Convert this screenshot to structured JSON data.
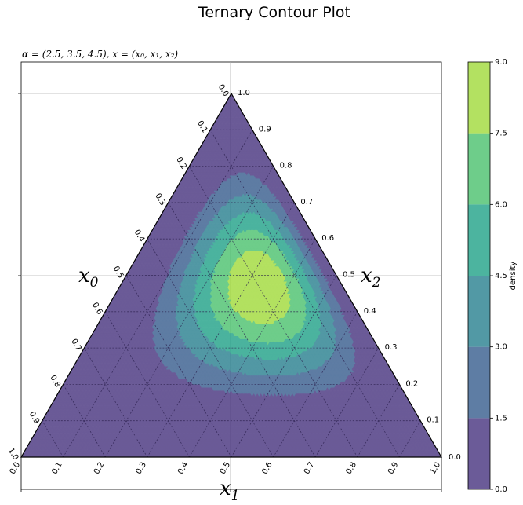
{
  "chart_data": {
    "type": "heatmap",
    "plot_kind": "ternary-contour",
    "title": "Ternary Contour Plot",
    "subtitle": "α = (2.5, 3.5, 4.5), x = (x₀, x₁, x₂)",
    "axis_labels": {
      "a": "x",
      "a_sub": "0",
      "b": "x",
      "b_sub": "1",
      "c": "x",
      "c_sub": "2"
    },
    "alpha": [
      2.5,
      3.5,
      4.5
    ],
    "ternary_ticks": [
      "0.0",
      "0.1",
      "0.2",
      "0.3",
      "0.4",
      "0.5",
      "0.6",
      "0.7",
      "0.8",
      "0.9",
      "1.0"
    ],
    "colorbar": {
      "label": "density",
      "ticks": [
        "0.0",
        "1.5",
        "3.0",
        "4.5",
        "6.0",
        "7.5",
        "9.0"
      ],
      "levels": [
        0,
        1.5,
        3.0,
        4.5,
        6.0,
        7.5,
        9.0
      ],
      "colors": [
        "#46327e",
        "#365c8d",
        "#277f8e",
        "#1fa187",
        "#4ac16d",
        "#a0da39",
        "#fde725"
      ],
      "alpha": 0.8
    },
    "grid": true
  }
}
